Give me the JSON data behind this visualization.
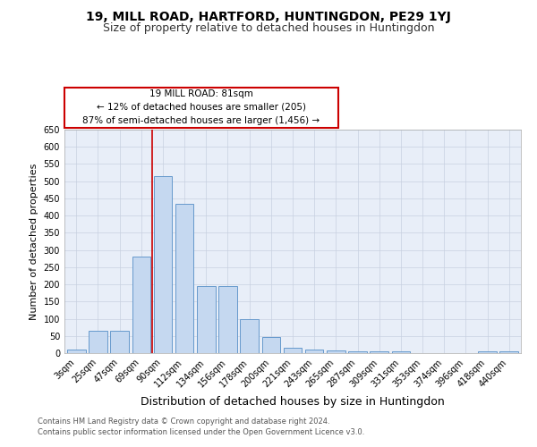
{
  "title": "19, MILL ROAD, HARTFORD, HUNTINGDON, PE29 1YJ",
  "subtitle": "Size of property relative to detached houses in Huntingdon",
  "xlabel": "Distribution of detached houses by size in Huntingdon",
  "ylabel": "Number of detached properties",
  "categories": [
    "3sqm",
    "25sqm",
    "47sqm",
    "69sqm",
    "90sqm",
    "112sqm",
    "134sqm",
    "156sqm",
    "178sqm",
    "200sqm",
    "221sqm",
    "243sqm",
    "265sqm",
    "287sqm",
    "309sqm",
    "331sqm",
    "353sqm",
    "374sqm",
    "396sqm",
    "418sqm",
    "440sqm"
  ],
  "values": [
    10,
    65,
    65,
    280,
    515,
    435,
    195,
    195,
    100,
    46,
    16,
    11,
    9,
    5,
    5,
    5,
    0,
    0,
    0,
    4,
    4
  ],
  "bar_color": "#c5d8f0",
  "bar_edge_color": "#6699cc",
  "vline_color": "#cc0000",
  "vline_x": 3.5,
  "annotation_line1": "19 MILL ROAD: 81sqm",
  "annotation_line2": "← 12% of detached houses are smaller (205)",
  "annotation_line3": "87% of semi-detached houses are larger (1,456) →",
  "annotation_box_facecolor": "#ffffff",
  "annotation_box_edgecolor": "#cc0000",
  "ylim": [
    0,
    650
  ],
  "yticks": [
    0,
    50,
    100,
    150,
    200,
    250,
    300,
    350,
    400,
    450,
    500,
    550,
    600,
    650
  ],
  "plot_bg_color": "#e8eef8",
  "grid_color": "#c8d0e0",
  "footer1": "Contains HM Land Registry data © Crown copyright and database right 2024.",
  "footer2": "Contains public sector information licensed under the Open Government Licence v3.0.",
  "title_fontsize": 10,
  "subtitle_fontsize": 9,
  "ylabel_fontsize": 8,
  "xlabel_fontsize": 9,
  "tick_fontsize": 7,
  "annotation_fontsize": 7.5,
  "footer_fontsize": 6
}
